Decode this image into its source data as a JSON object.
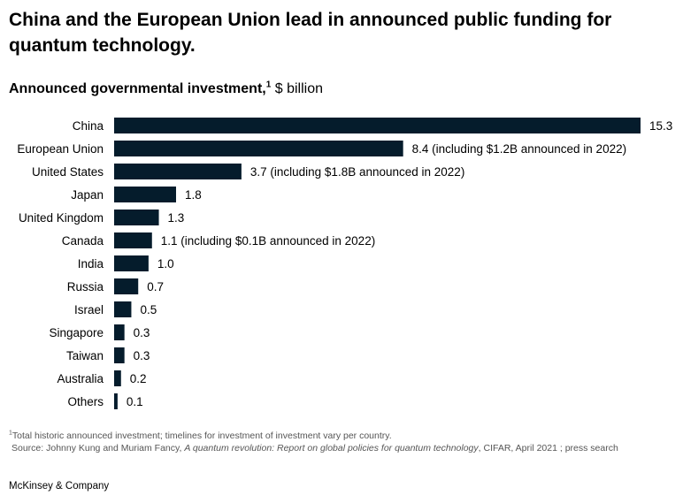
{
  "header": {
    "title": "China and the European Union lead in announced public funding for quantum technology."
  },
  "chart_data": {
    "type": "bar",
    "orientation": "horizontal",
    "title": "Announced governmental investment,",
    "title_footnote_marker": "1",
    "unit": "$ billion",
    "categories": [
      "China",
      "European Union",
      "United States",
      "Japan",
      "United Kingdom",
      "Canada",
      "India",
      "Russia",
      "Israel",
      "Singapore",
      "Taiwan",
      "Australia",
      "Others"
    ],
    "values": [
      15.3,
      8.4,
      3.7,
      1.8,
      1.3,
      1.1,
      1.0,
      0.7,
      0.5,
      0.3,
      0.3,
      0.2,
      0.1
    ],
    "data_labels": [
      "15.3",
      "8.4 (including $1.2B announced in 2022)",
      "3.7 (including $1.8B announced in 2022)",
      "1.8",
      "1.3",
      "1.1 (including $0.1B announced in 2022)",
      "1.0",
      "0.7",
      "0.5",
      "0.3",
      "0.3",
      "0.2",
      "0.1"
    ],
    "xlim": [
      0,
      15.3
    ],
    "bar_color": "#051c2c",
    "grid": false,
    "axes_visible": false
  },
  "footnote": {
    "marker": "1",
    "text": "Total historic announced investment; timelines for investment of investment vary per country.",
    "source_prefix": "Source: Johnny Kung and Muriam Fancy, ",
    "source_title": "A quantum revolution: Report on global policies for quantum technology",
    "source_suffix": ", CIFAR, April 2021 ; press search"
  },
  "footer": {
    "brand": "McKinsey & Company"
  }
}
